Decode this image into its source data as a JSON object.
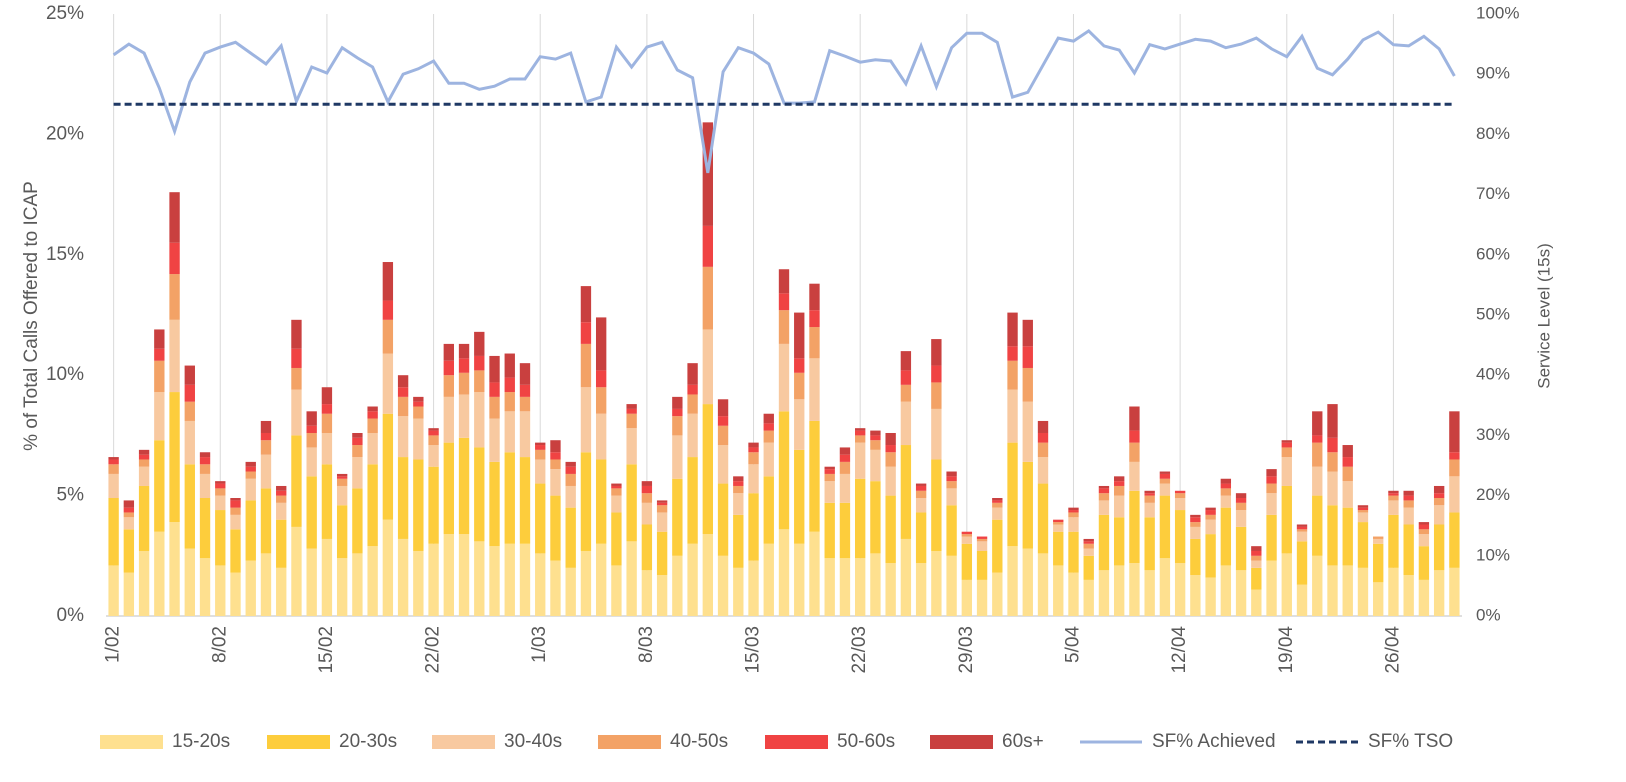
{
  "chart_data": {
    "type": "bar",
    "stacked": true,
    "y_label": "% of Total Calls Offered to ICAP",
    "y2_label": "Service Level (15s)",
    "categories": [
      "1/02",
      null,
      null,
      null,
      null,
      null,
      null,
      "8/02",
      null,
      null,
      null,
      null,
      null,
      null,
      "15/02",
      null,
      null,
      null,
      null,
      null,
      null,
      "22/02",
      null,
      null,
      null,
      null,
      null,
      null,
      "1/03",
      null,
      null,
      null,
      null,
      null,
      null,
      "8/03",
      null,
      null,
      null,
      null,
      null,
      null,
      "15/03",
      null,
      null,
      null,
      null,
      null,
      null,
      "22/03",
      null,
      null,
      null,
      null,
      null,
      null,
      "29/03",
      null,
      null,
      null,
      null,
      null,
      null,
      "5/04",
      null,
      null,
      null,
      null,
      null,
      null,
      "12/04",
      null,
      null,
      null,
      null,
      null,
      null,
      "19/04",
      null,
      null,
      null,
      null,
      null,
      null,
      "26/04",
      null,
      null,
      null,
      null
    ],
    "ylim": [
      0,
      25
    ],
    "yticks": [
      {
        "value": 0,
        "label": "0%"
      },
      {
        "value": 5,
        "label": "5%"
      },
      {
        "value": 10,
        "label": "10%"
      },
      {
        "value": 15,
        "label": "15%"
      },
      {
        "value": 20,
        "label": "20%"
      },
      {
        "value": 25,
        "label": "25%"
      }
    ],
    "y2lim": [
      0,
      100
    ],
    "y2ticks": [
      {
        "value": 0,
        "label": "0%"
      },
      {
        "value": 10,
        "label": "10%"
      },
      {
        "value": 20,
        "label": "20%"
      },
      {
        "value": 30,
        "label": "30%"
      },
      {
        "value": 40,
        "label": "40%"
      },
      {
        "value": 50,
        "label": "50%"
      },
      {
        "value": 60,
        "label": "60%"
      },
      {
        "value": 70,
        "label": "70%"
      },
      {
        "value": 80,
        "label": "80%"
      },
      {
        "value": 90,
        "label": "90%"
      },
      {
        "value": 100,
        "label": "100%"
      }
    ],
    "grid": "x",
    "legend": "bottom",
    "series": [
      {
        "name": "15-20s",
        "color": "#fee08f",
        "values": [
          2.1,
          1.8,
          2.7,
          3.5,
          3.9,
          2.8,
          2.4,
          2.1,
          1.8,
          2.3,
          2.6,
          2.0,
          3.7,
          2.8,
          3.2,
          2.4,
          2.6,
          2.9,
          4.0,
          3.2,
          2.7,
          3.0,
          3.4,
          3.4,
          3.1,
          2.9,
          3.0,
          3.0,
          2.6,
          2.3,
          2.0,
          2.7,
          3.0,
          2.1,
          3.1,
          1.9,
          1.7,
          2.5,
          3.0,
          3.4,
          2.5,
          2.0,
          2.3,
          3.0,
          3.6,
          3.0,
          3.5,
          2.4,
          2.4,
          2.4,
          2.6,
          2.2,
          3.2,
          2.2,
          2.7,
          2.5,
          1.5,
          1.5,
          1.8,
          2.9,
          2.8,
          2.6,
          2.1,
          1.8,
          1.5,
          1.9,
          2.1,
          2.2,
          1.9,
          2.4,
          2.2,
          1.7,
          1.6,
          2.1,
          1.9,
          1.1,
          2.3,
          2.6,
          1.3,
          2.5,
          2.1,
          2.1,
          2.0,
          1.4,
          2.0,
          1.7,
          1.5,
          1.9,
          2.0
        ]
      },
      {
        "name": "20-30s",
        "color": "#fdcd3c",
        "values": [
          2.8,
          1.8,
          2.7,
          3.8,
          5.4,
          3.5,
          2.5,
          2.3,
          1.8,
          2.5,
          2.7,
          2.0,
          3.8,
          3.0,
          3.1,
          2.2,
          2.7,
          3.4,
          4.4,
          3.4,
          3.8,
          3.2,
          3.8,
          4.0,
          3.9,
          3.5,
          3.8,
          3.6,
          2.9,
          2.7,
          2.5,
          4.1,
          3.5,
          2.2,
          3.2,
          1.9,
          1.8,
          3.2,
          3.6,
          5.4,
          3.0,
          2.2,
          2.8,
          2.8,
          4.9,
          3.9,
          4.6,
          2.3,
          2.3,
          3.3,
          3.0,
          2.8,
          3.9,
          2.1,
          3.8,
          2.1,
          1.5,
          1.2,
          2.2,
          4.3,
          3.6,
          2.9,
          1.4,
          1.7,
          1.0,
          2.3,
          2.0,
          3.0,
          2.2,
          2.6,
          2.2,
          1.5,
          1.8,
          2.4,
          1.8,
          0.9,
          1.9,
          2.8,
          1.8,
          2.5,
          2.5,
          2.4,
          1.9,
          1.6,
          2.2,
          2.1,
          1.4,
          1.9,
          2.3
        ]
      },
      {
        "name": "30-40s",
        "color": "#f8c9a0",
        "values": [
          1.0,
          0.5,
          0.8,
          2.0,
          3.0,
          1.8,
          1.0,
          0.6,
          0.6,
          0.9,
          1.4,
          0.7,
          1.9,
          1.2,
          1.3,
          0.8,
          1.3,
          1.3,
          2.5,
          1.7,
          1.7,
          0.9,
          1.9,
          1.8,
          2.3,
          1.8,
          1.7,
          1.9,
          1.0,
          1.1,
          0.9,
          2.7,
          1.9,
          0.7,
          1.5,
          0.9,
          0.8,
          1.8,
          1.8,
          3.1,
          1.6,
          0.9,
          1.2,
          1.4,
          2.8,
          2.1,
          2.6,
          0.9,
          1.2,
          1.5,
          1.3,
          1.2,
          1.8,
          0.6,
          2.1,
          0.7,
          0.3,
          0.4,
          0.5,
          2.2,
          2.5,
          1.1,
          0.3,
          0.6,
          0.3,
          0.6,
          0.9,
          1.2,
          0.6,
          0.5,
          0.5,
          0.5,
          0.6,
          0.5,
          0.7,
          0.3,
          0.9,
          1.2,
          0.4,
          1.2,
          1.4,
          1.1,
          0.4,
          0.2,
          0.6,
          0.7,
          0.5,
          0.8,
          1.5
        ]
      },
      {
        "name": "40-50s",
        "color": "#f3a266",
        "values": [
          0.4,
          0.2,
          0.3,
          1.3,
          1.9,
          0.8,
          0.4,
          0.3,
          0.3,
          0.3,
          0.6,
          0.3,
          0.9,
          0.6,
          0.8,
          0.3,
          0.5,
          0.6,
          1.4,
          0.8,
          0.5,
          0.4,
          0.9,
          0.9,
          0.9,
          0.9,
          0.8,
          0.6,
          0.4,
          0.4,
          0.5,
          1.8,
          1.1,
          0.3,
          0.6,
          0.4,
          0.3,
          0.8,
          0.8,
          2.6,
          0.8,
          0.3,
          0.5,
          0.5,
          1.4,
          1.1,
          1.3,
          0.3,
          0.5,
          0.3,
          0.4,
          0.6,
          0.7,
          0.3,
          1.1,
          0.3,
          0.1,
          0.1,
          0.2,
          1.2,
          1.4,
          0.6,
          0.1,
          0.2,
          0.2,
          0.3,
          0.4,
          0.8,
          0.3,
          0.2,
          0.2,
          0.2,
          0.2,
          0.3,
          0.3,
          0.2,
          0.4,
          0.4,
          0.1,
          1.0,
          0.8,
          0.6,
          0.1,
          0.1,
          0.2,
          0.3,
          0.2,
          0.3,
          0.7
        ]
      },
      {
        "name": "50-60s",
        "color": "#f04343",
        "values": [
          0.2,
          0.2,
          0.2,
          0.5,
          1.3,
          0.7,
          0.3,
          0.2,
          0.3,
          0.2,
          0.3,
          0.2,
          0.8,
          0.3,
          0.4,
          0.1,
          0.3,
          0.3,
          0.8,
          0.4,
          0.2,
          0.2,
          0.6,
          0.6,
          0.6,
          0.6,
          0.6,
          0.5,
          0.2,
          0.3,
          0.3,
          0.9,
          0.7,
          0.1,
          0.2,
          0.3,
          0.1,
          0.3,
          0.4,
          1.7,
          0.4,
          0.2,
          0.2,
          0.3,
          0.7,
          0.6,
          0.7,
          0.2,
          0.3,
          0.2,
          0.2,
          0.3,
          0.6,
          0.2,
          0.7,
          0.2,
          0.1,
          0.1,
          0.1,
          0.6,
          0.9,
          0.4,
          0.1,
          0.1,
          0.1,
          0.2,
          0.2,
          0.5,
          0.1,
          0.2,
          0.1,
          0.2,
          0.2,
          0.2,
          0.2,
          0.2,
          0.3,
          0.2,
          0.1,
          0.3,
          0.6,
          0.4,
          0.1,
          0.0,
          0.1,
          0.2,
          0.2,
          0.2,
          0.3
        ]
      },
      {
        "name": "60s+",
        "color": "#c9403f",
        "values": [
          0.1,
          0.3,
          0.2,
          0.8,
          2.1,
          0.8,
          0.2,
          0.1,
          0.1,
          0.2,
          0.5,
          0.2,
          1.2,
          0.6,
          0.7,
          0.1,
          0.2,
          0.2,
          1.6,
          0.5,
          0.2,
          0.1,
          0.7,
          0.6,
          1.0,
          1.1,
          1.0,
          0.9,
          0.1,
          0.5,
          0.2,
          1.5,
          2.2,
          0.1,
          0.2,
          0.2,
          0.1,
          0.5,
          0.9,
          4.3,
          0.7,
          0.2,
          0.2,
          0.4,
          1.0,
          1.9,
          1.1,
          0.1,
          0.3,
          0.1,
          0.2,
          0.5,
          0.8,
          0.1,
          1.1,
          0.2,
          0.0,
          0.0,
          0.1,
          1.4,
          1.1,
          0.5,
          0.0,
          0.1,
          0.1,
          0.1,
          0.2,
          1.0,
          0.1,
          0.1,
          0.0,
          0.1,
          0.1,
          0.2,
          0.2,
          0.2,
          0.3,
          0.1,
          0.1,
          1.0,
          1.4,
          0.5,
          0.1,
          0.0,
          0.1,
          0.2,
          0.1,
          0.3,
          1.7
        ]
      },
      {
        "name": "SF% Achieved",
        "type": "line",
        "axis": "y2",
        "color": "#9db4e0",
        "values": [
          93.2,
          95,
          93.5,
          87.7,
          80.5,
          88.7,
          93.5,
          94.5,
          95.3,
          93.5,
          91.7,
          94.7,
          85.5,
          91.2,
          90.2,
          94.4,
          92.7,
          91.2,
          85.4,
          90,
          90.9,
          92.2,
          88.5,
          88.5,
          87.5,
          88,
          89.2,
          89.2,
          92.9,
          92.5,
          93.5,
          85.4,
          86.2,
          94.5,
          91.2,
          94.5,
          95.3,
          90.7,
          89.4,
          73.6,
          90.4,
          94.4,
          93.5,
          91.7,
          85.2,
          85.2,
          85.4,
          93.9,
          93,
          92,
          92.4,
          92.2,
          88.4,
          94.7,
          87.9,
          94.4,
          96.8,
          96.8,
          95.3,
          86.2,
          87,
          91.5,
          96,
          95.5,
          97.2,
          94.7,
          94,
          90.2,
          94.9,
          94.2,
          95,
          95.8,
          95.5,
          94.4,
          95,
          96,
          94.2,
          92.9,
          96.3,
          91,
          89.9,
          92.5,
          95.7,
          97,
          94.9,
          94.7,
          96.3,
          94.2,
          89.7
        ]
      },
      {
        "name": "SF% TSO",
        "type": "line",
        "axis": "y2",
        "dashed": true,
        "color": "#1f3864",
        "values": [
          85,
          85,
          85,
          85,
          85,
          85,
          85,
          85,
          85,
          85,
          85,
          85,
          85,
          85,
          85,
          85,
          85,
          85,
          85,
          85,
          85,
          85,
          85,
          85,
          85,
          85,
          85,
          85,
          85,
          85,
          85,
          85,
          85,
          85,
          85,
          85,
          85,
          85,
          85,
          85,
          85,
          85,
          85,
          85,
          85,
          85,
          85,
          85,
          85,
          85,
          85,
          85,
          85,
          85,
          85,
          85,
          85,
          85,
          85,
          85,
          85,
          85,
          85,
          85,
          85,
          85,
          85,
          85,
          85,
          85,
          85,
          85,
          85,
          85,
          85,
          85,
          85,
          85,
          85,
          85,
          85,
          85,
          85,
          85,
          85,
          85,
          85,
          85,
          85
        ]
      }
    ]
  }
}
